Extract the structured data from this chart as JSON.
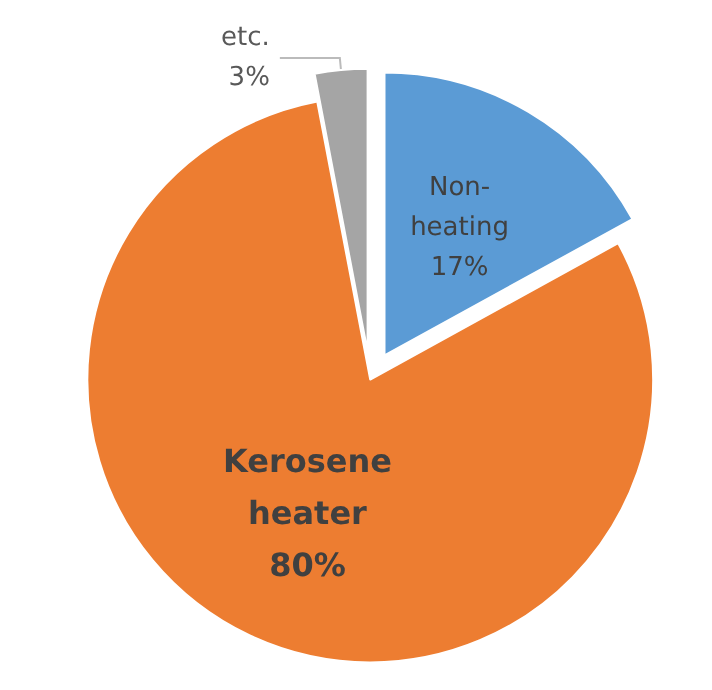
{
  "chart_data": {
    "type": "pie",
    "categories": [
      "Non-heating",
      "Kerosene heater",
      "etc."
    ],
    "values": [
      17,
      80,
      3
    ],
    "colors": [
      "#5b9bd5",
      "#ed7d31",
      "#a5a5a5"
    ],
    "value_labels": [
      "17%",
      "80%",
      "3%"
    ],
    "legend": false
  }
}
